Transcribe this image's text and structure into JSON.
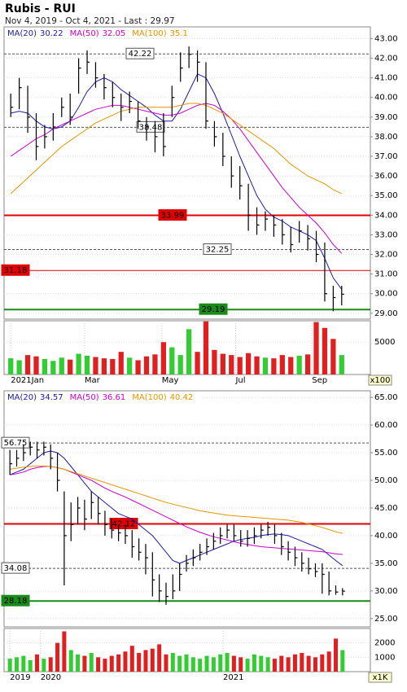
{
  "header": {
    "title": "Rubis - RUI",
    "subtitle": "Nov 4, 2019 - Oct 4, 2021 - Last : 29.97"
  },
  "chart_data": [
    {
      "type": "hilo",
      "xlim": [
        -0.5,
        39.5
      ],
      "ylim": [
        28.7,
        43.6
      ],
      "grid": true,
      "bar_color": "#000000",
      "yticks": [
        {
          "value": 29,
          "label": "29.00"
        },
        {
          "value": 30,
          "label": "30.00"
        },
        {
          "value": 31,
          "label": "31.00"
        },
        {
          "value": 32,
          "label": "32.00"
        },
        {
          "value": 33,
          "label": "33.00"
        },
        {
          "value": 34,
          "label": "34.00"
        },
        {
          "value": 35,
          "label": "35.00"
        },
        {
          "value": 36,
          "label": "36.00"
        },
        {
          "value": 37,
          "label": "37.00"
        },
        {
          "value": 38,
          "label": "38.00"
        },
        {
          "value": 39,
          "label": "39.00"
        },
        {
          "value": 40,
          "label": "40.00"
        },
        {
          "value": 41,
          "label": "41.00"
        },
        {
          "value": 42,
          "label": "42.00"
        },
        {
          "value": 43,
          "label": "43.00"
        }
      ],
      "close": [
        39.5,
        40.5,
        39,
        37.5,
        38,
        38.5,
        39.5,
        39,
        41.5,
        41.8,
        41,
        40.5,
        40,
        39.5,
        39.8,
        38.8,
        38.5,
        38,
        37.5,
        40,
        41.5,
        42.2,
        41.8,
        38.8,
        38,
        37,
        36,
        35.5,
        34,
        33.5,
        33.8,
        33.5,
        33,
        32.5,
        33.2,
        32.8,
        32,
        30,
        29.8,
        29.97
      ],
      "high": [
        40.2,
        41,
        40.6,
        39.2,
        38.6,
        39.2,
        40,
        40.2,
        42,
        42.4,
        41.8,
        41.2,
        40.8,
        40.2,
        40.3,
        39.8,
        39,
        38.8,
        39.2,
        40.6,
        42.3,
        42.6,
        42.4,
        41.8,
        38.8,
        38.2,
        37,
        36.5,
        35.6,
        34.4,
        34.2,
        34,
        33.8,
        33.4,
        33.7,
        33.5,
        33.2,
        32.6,
        30.4,
        30.4
      ],
      "low": [
        39,
        39.4,
        38.2,
        36.8,
        37.4,
        37.8,
        39,
        38.6,
        40.2,
        41.2,
        40.5,
        39.9,
        39.5,
        38.8,
        39.2,
        38.4,
        37.8,
        37.2,
        37,
        39,
        40.8,
        41.5,
        40.8,
        38.4,
        37.5,
        36.5,
        35.4,
        34.8,
        33.2,
        33,
        33.2,
        32.9,
        32.5,
        32.1,
        32.6,
        32.2,
        31.6,
        29.6,
        29.1,
        29.4
      ],
      "series": [
        {
          "name": "MA(20)",
          "last": 30.22,
          "color": "#1c1ca8",
          "values": [
            39.2,
            39.3,
            39.2,
            38.8,
            38.5,
            38.4,
            38.5,
            38.8,
            39.5,
            40.3,
            40.8,
            41,
            40.8,
            40.4,
            40.1,
            39.8,
            39.5,
            39.1,
            38.8,
            38.8,
            39.4,
            40.3,
            41.2,
            41,
            40.2,
            39.2,
            38.1,
            37,
            36,
            35,
            34.3,
            33.9,
            33.7,
            33.4,
            33.2,
            33,
            32.7,
            31.8,
            30.8,
            30.22
          ]
        },
        {
          "name": "MA(50)",
          "last": 32.05,
          "color": "#cc00cc",
          "values": [
            37,
            37.3,
            37.6,
            37.9,
            38.1,
            38.4,
            38.6,
            38.8,
            39,
            39.2,
            39.4,
            39.5,
            39.6,
            39.6,
            39.5,
            39.4,
            39.3,
            39.2,
            39.1,
            39.1,
            39.2,
            39.4,
            39.6,
            39.7,
            39.6,
            39.3,
            38.9,
            38.4,
            37.8,
            37.2,
            36.6,
            36,
            35.4,
            34.9,
            34.4,
            34,
            33.6,
            33.1,
            32.5,
            32.05
          ]
        },
        {
          "name": "MA(100)",
          "last": 35.1,
          "color": "#e69500",
          "values": [
            35.1,
            35.5,
            35.9,
            36.3,
            36.7,
            37.1,
            37.5,
            37.8,
            38.1,
            38.4,
            38.7,
            38.9,
            39.1,
            39.3,
            39.4,
            39.5,
            39.5,
            39.5,
            39.5,
            39.5,
            39.6,
            39.7,
            39.7,
            39.6,
            39.4,
            39.2,
            38.9,
            38.6,
            38.3,
            38,
            37.7,
            37.4,
            37,
            36.6,
            36.3,
            36,
            35.8,
            35.6,
            35.3,
            35.1
          ]
        }
      ],
      "levels": [
        {
          "value": 42.22,
          "style": "dashed",
          "color": "#555555"
        },
        {
          "value": 38.48,
          "style": "dashed",
          "color": "#555555"
        },
        {
          "value": 33.99,
          "style": "solid",
          "color": "#e00000"
        },
        {
          "value": 32.25,
          "style": "dashed",
          "color": "#555555"
        },
        {
          "value": 31.18,
          "style": "thin",
          "color": "#e00000"
        },
        {
          "value": 29.19,
          "style": "solid",
          "color": "#1a8a1a"
        }
      ]
    },
    {
      "type": "volume",
      "xlim": [
        -0.5,
        39.5
      ],
      "ylim": [
        0,
        8300
      ],
      "unit_label": "x100",
      "up_color": "#33cc33",
      "down_color": "#e02020",
      "yticks": [
        5000
      ],
      "xticks": [
        {
          "value": 0,
          "label": "2021Jan"
        },
        {
          "value": 8.7,
          "label": "Mar"
        },
        {
          "value": 17.8,
          "label": "May"
        },
        {
          "value": 26.5,
          "label": "Jul"
        },
        {
          "value": 35.5,
          "label": "Sep"
        }
      ],
      "values": [
        2500,
        2200,
        3000,
        2800,
        2400,
        2100,
        2600,
        2300,
        3200,
        2900,
        2700,
        2500,
        2400,
        3500,
        2600,
        2200,
        2800,
        3100,
        5000,
        4200,
        3000,
        7000,
        3500,
        8200,
        3800,
        3200,
        3000,
        2700,
        3300,
        2800,
        2600,
        2500,
        3000,
        2700,
        2900,
        3100,
        8100,
        7200,
        5500,
        3000
      ]
    },
    {
      "type": "hilo",
      "xlim": [
        -0.5,
        49.5
      ],
      "ylim": [
        23.5,
        66.2
      ],
      "grid": true,
      "bar_color": "#000000",
      "yticks": [
        {
          "value": 25,
          "label": "25.00"
        },
        {
          "value": 30,
          "label": "30.00"
        },
        {
          "value": 35,
          "label": "35.00"
        },
        {
          "value": 40,
          "label": "40.00"
        },
        {
          "value": 45,
          "label": "45.00"
        },
        {
          "value": 50,
          "label": "50.00"
        },
        {
          "value": 55,
          "label": "55.00"
        },
        {
          "value": 60,
          "label": "60.00"
        },
        {
          "value": 65,
          "label": "65.00"
        }
      ],
      "close": [
        53,
        54,
        55,
        56,
        55.5,
        56,
        54,
        50,
        40,
        42,
        45,
        43,
        46,
        44,
        42,
        41,
        40.5,
        40,
        38,
        37,
        36,
        32,
        30,
        29,
        30,
        33,
        35,
        36,
        37,
        38,
        39,
        40,
        41,
        40,
        39,
        39.5,
        40,
        41,
        41.5,
        40,
        38,
        37,
        36,
        35,
        34,
        33.5,
        33,
        30,
        29.8,
        29.97
      ],
      "high": [
        55.5,
        55.5,
        56.5,
        57,
        57,
        57,
        56.5,
        55,
        48,
        46,
        47,
        46.5,
        48,
        47,
        44.5,
        43,
        42,
        42,
        41,
        39.5,
        38.5,
        37,
        33,
        31.5,
        33,
        35,
        36.5,
        37.5,
        38.5,
        39.5,
        40.5,
        41.5,
        42,
        42,
        41,
        41,
        41.5,
        42,
        42.5,
        42,
        40.5,
        39,
        38,
        37,
        36,
        35,
        35,
        33.5,
        31,
        30.5
      ],
      "low": [
        51,
        52.5,
        53.5,
        54.5,
        54,
        54.5,
        52,
        48,
        31,
        39,
        42,
        41,
        43,
        42,
        40,
        39.5,
        39,
        38.5,
        36,
        35.5,
        33,
        29,
        28,
        27.5,
        28.5,
        30,
        33.5,
        34.5,
        35.5,
        36.5,
        37.5,
        38.5,
        39.5,
        39,
        38,
        38,
        38.5,
        39.5,
        40,
        38.5,
        36.5,
        35.5,
        34.5,
        33.5,
        33,
        32.5,
        29.5,
        29.2,
        29.3,
        29.2
      ],
      "series": [
        {
          "name": "MA(20)",
          "last": 34.57,
          "color": "#1c1ca8",
          "values": [
            51,
            51.5,
            52,
            53,
            54,
            55,
            55.3,
            55,
            54,
            52.5,
            51,
            49.5,
            48,
            47,
            46,
            45,
            44,
            43.5,
            43,
            42,
            41,
            40,
            38.5,
            37,
            35.5,
            35,
            35.5,
            36,
            36.5,
            37,
            37.5,
            38,
            38.5,
            39,
            39.3,
            39.5,
            39.7,
            40,
            40.2,
            40.3,
            40.2,
            40,
            39.5,
            39,
            38.5,
            38,
            37.5,
            36.5,
            35.5,
            34.57
          ]
        },
        {
          "name": "MA(50)",
          "last": 36.61,
          "color": "#cc00cc",
          "values": [
            51,
            51.2,
            51.5,
            52,
            52.3,
            52.5,
            52.5,
            52.3,
            52,
            51.5,
            51,
            50.5,
            50,
            49.3,
            48.6,
            48,
            47.5,
            47,
            46.4,
            45.8,
            45.2,
            44.6,
            44,
            43.4,
            42.8,
            42.2,
            41.6,
            41.1,
            40.6,
            40.2,
            39.8,
            39.5,
            39.2,
            38.9,
            38.6,
            38.4,
            38.2,
            38,
            37.9,
            37.8,
            37.7,
            37.6,
            37.5,
            37.4,
            37.3,
            37.2,
            37.1,
            36.9,
            36.7,
            36.61
          ]
        },
        {
          "name": "MA(100)",
          "last": 40.42,
          "color": "#e69500",
          "values": [
            52,
            52.2,
            52.4,
            52.5,
            52.6,
            52.6,
            52.5,
            52.3,
            52,
            51.6,
            51.2,
            50.8,
            50.4,
            50,
            49.6,
            49.2,
            48.8,
            48.4,
            48,
            47.6,
            47.2,
            46.8,
            46.4,
            46,
            45.7,
            45.4,
            45.1,
            44.8,
            44.5,
            44.3,
            44.1,
            43.9,
            43.7,
            43.6,
            43.5,
            43.4,
            43.3,
            43.2,
            43.1,
            43,
            42.9,
            42.8,
            42.6,
            42.4,
            42.1,
            41.8,
            41.5,
            41.1,
            40.7,
            40.42
          ]
        }
      ],
      "levels": [
        {
          "value": 56.75,
          "style": "dashed",
          "color": "#555555"
        },
        {
          "value": 42.12,
          "style": "solid",
          "color": "#e00000"
        },
        {
          "value": 34.08,
          "style": "dashed",
          "color": "#555555"
        },
        {
          "value": 28.18,
          "style": "solid",
          "color": "#1a8a1a"
        }
      ]
    },
    {
      "type": "volume",
      "xlim": [
        -0.5,
        49.5
      ],
      "ylim": [
        0,
        3000
      ],
      "unit_label": "x1K",
      "up_color": "#33cc33",
      "down_color": "#e02020",
      "yticks": [
        1000,
        2000
      ],
      "xticks": [
        {
          "value": 0,
          "label": "2019"
        },
        {
          "value": 4.5,
          "label": "2020"
        },
        {
          "value": 31.4,
          "label": "2021"
        }
      ],
      "values": [
        900,
        1000,
        1100,
        800,
        1200,
        900,
        1000,
        2000,
        2800,
        1500,
        1200,
        1100,
        1300,
        1000,
        900,
        1100,
        1200,
        1400,
        1800,
        1300,
        1500,
        1600,
        1900,
        1200,
        1300,
        1100,
        1200,
        1000,
        900,
        1100,
        1000,
        1200,
        1300,
        1100,
        1000,
        900,
        1200,
        1100,
        1000,
        900,
        1100,
        1000,
        1200,
        1300,
        1100,
        1000,
        1200,
        1400,
        2300,
        1500
      ]
    }
  ]
}
